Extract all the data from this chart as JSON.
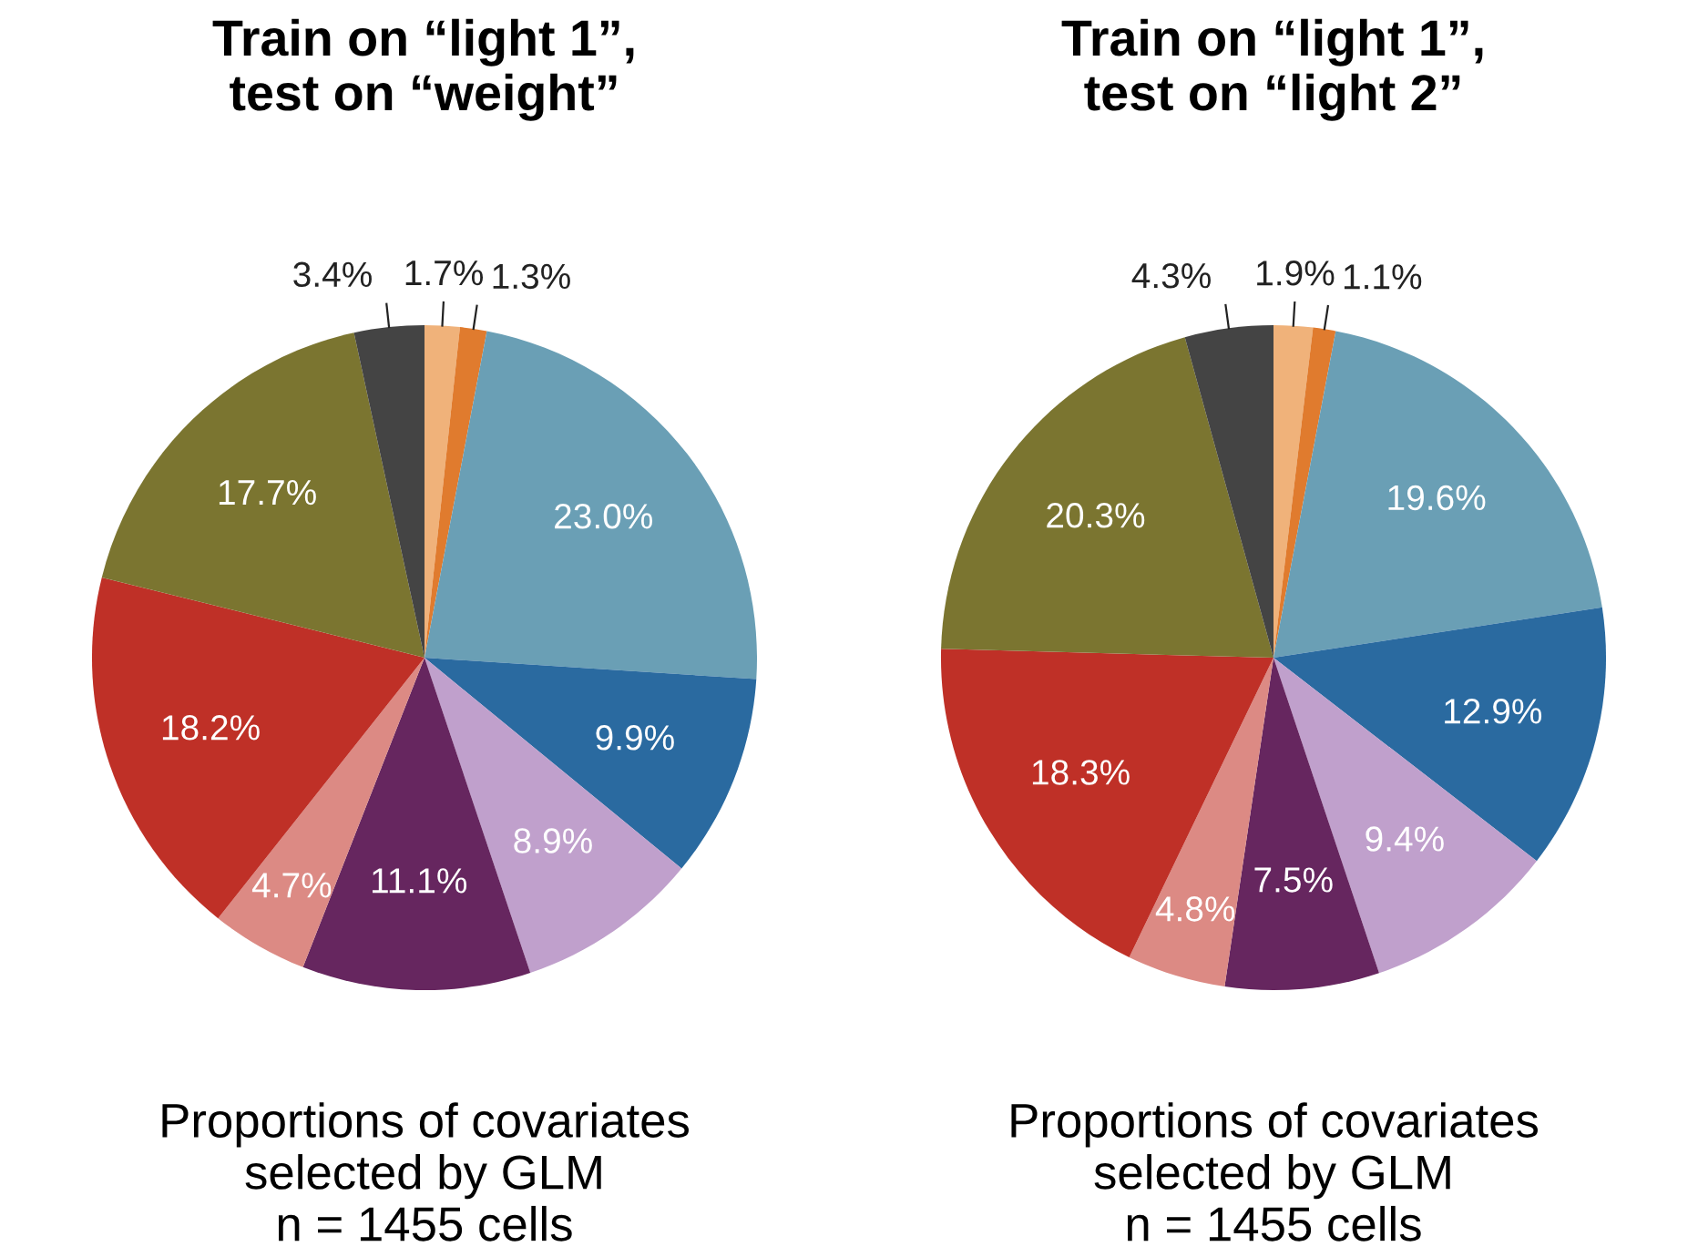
{
  "chart_data": [
    {
      "type": "pie",
      "title": "Train on “light 1”,\ntest on “weight”",
      "categories": [
        null,
        null,
        null,
        null,
        null,
        null,
        null,
        null,
        null,
        null
      ],
      "values": [
        1.7,
        1.3,
        23.0,
        9.9,
        8.9,
        11.1,
        4.7,
        18.2,
        17.7,
        3.4
      ],
      "value_labels": [
        "1.7%",
        "1.3%",
        "23.0%",
        "9.9%",
        "8.9%",
        "11.1%",
        "4.7%",
        "18.2%",
        "17.7%",
        "3.4%"
      ],
      "colors": [
        "#f0b27a",
        "#e07b2e",
        "#6a9fb5",
        "#2a6aa0",
        "#c0a0cc",
        "#66265f",
        "#dc8a84",
        "#bf3027",
        "#7b7530",
        "#444444"
      ],
      "annotations": [
        "Proportions of covariates\nselected by GLM\nn = 1455 cells"
      ]
    },
    {
      "type": "pie",
      "title": "Train on “light 1”,\ntest on “light 2”",
      "categories": [
        null,
        null,
        null,
        null,
        null,
        null,
        null,
        null,
        null,
        null
      ],
      "values": [
        1.9,
        1.1,
        19.6,
        12.9,
        9.4,
        7.5,
        4.8,
        18.3,
        20.3,
        4.3
      ],
      "value_labels": [
        "1.9%",
        "1.1%",
        "19.6%",
        "12.9%",
        "9.4%",
        "7.5%",
        "4.8%",
        "18.3%",
        "20.3%",
        "4.3%"
      ],
      "colors": [
        "#f0b27a",
        "#e07b2e",
        "#6a9fb5",
        "#2a6aa0",
        "#c0a0cc",
        "#66265f",
        "#dc8a84",
        "#bf3027",
        "#7b7530",
        "#444444"
      ],
      "annotations": [
        "Proportions of covariates\nselected by GLM\nn = 1455 cells"
      ]
    }
  ]
}
